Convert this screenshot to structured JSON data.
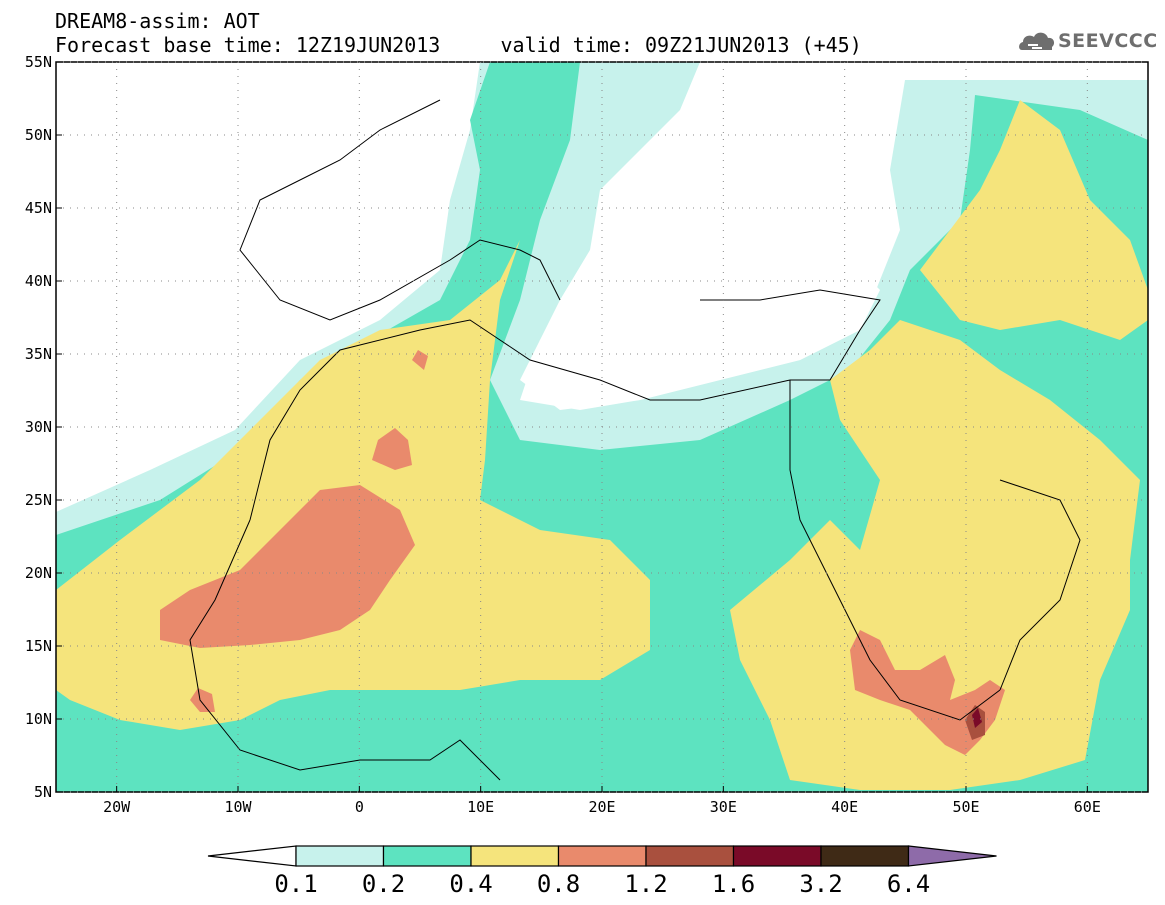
{
  "header": {
    "line1": "DREAM8-assim: AOT",
    "line2": "Forecast base time: 12Z19JUN2013     valid time: 09Z21JUN2013 (+45)",
    "logo": "SEEVCCC",
    "logo_icon": "cloud-icon"
  },
  "map": {
    "lon_range": [
      -25,
      65
    ],
    "lat_range": [
      5,
      55
    ],
    "x_ticks": [
      {
        "lon": -20,
        "label": "20W"
      },
      {
        "lon": -10,
        "label": "10W"
      },
      {
        "lon": 0,
        "label": "0"
      },
      {
        "lon": 10,
        "label": "10E"
      },
      {
        "lon": 20,
        "label": "20E"
      },
      {
        "lon": 30,
        "label": "30E"
      },
      {
        "lon": 40,
        "label": "40E"
      },
      {
        "lon": 50,
        "label": "50E"
      },
      {
        "lon": 60,
        "label": "60E"
      }
    ],
    "y_ticks": [
      {
        "lat": 55,
        "label": "55N"
      },
      {
        "lat": 50,
        "label": "50N"
      },
      {
        "lat": 45,
        "label": "45N"
      },
      {
        "lat": 40,
        "label": "40N"
      },
      {
        "lat": 35,
        "label": "35N"
      },
      {
        "lat": 30,
        "label": "30N"
      },
      {
        "lat": 25,
        "label": "25N"
      },
      {
        "lat": 20,
        "label": "20N"
      },
      {
        "lat": 15,
        "label": "15N"
      },
      {
        "lat": 10,
        "label": "10N"
      },
      {
        "lat": 5,
        "label": "5N"
      }
    ],
    "grid": "dotted"
  },
  "colorbar": {
    "labels": [
      "0.1",
      "0.2",
      "0.4",
      "0.8",
      "1.2",
      "1.6",
      "3.2",
      "6.4"
    ],
    "colors": [
      "#ffffff",
      "#c7f2ec",
      "#5de3c0",
      "#f5e47c",
      "#e98a6c",
      "#a9503e",
      "#7a0a28",
      "#3f2a16",
      "#8e6ba9"
    ]
  }
}
